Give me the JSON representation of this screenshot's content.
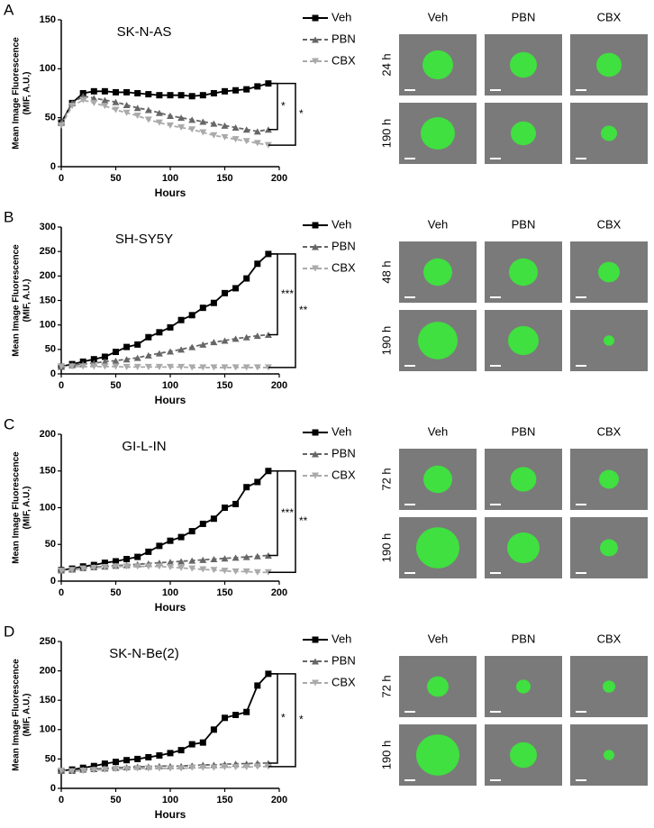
{
  "chart_data": [
    {
      "type": "line",
      "panel": "A",
      "title": "SK-N-AS",
      "xlabel": "Hours",
      "ylabel": [
        "Mean Image Fluorescence",
        "(MIF, A.U.)"
      ],
      "x": [
        0,
        10,
        20,
        30,
        40,
        50,
        60,
        70,
        80,
        90,
        100,
        110,
        120,
        130,
        140,
        150,
        160,
        170,
        180,
        190
      ],
      "xlim": [
        0,
        200
      ],
      "xticks": [
        0,
        50,
        100,
        150,
        200
      ],
      "ylim": [
        0,
        150
      ],
      "yticks": [
        0,
        50,
        100,
        150
      ],
      "series": [
        {
          "name": "Veh",
          "color": "#000000",
          "marker": "square",
          "dash": false,
          "values": [
            45,
            65,
            75,
            77,
            77,
            76,
            76,
            75,
            74,
            73,
            73,
            73,
            72,
            73,
            75,
            77,
            78,
            79,
            82,
            85
          ]
        },
        {
          "name": "PBN",
          "color": "#666666",
          "marker": "triangle-up",
          "dash": true,
          "values": [
            45,
            65,
            72,
            70,
            68,
            66,
            63,
            60,
            58,
            55,
            52,
            50,
            48,
            46,
            44,
            42,
            40,
            38,
            36,
            38
          ]
        },
        {
          "name": "CBX",
          "color": "#aaaaaa",
          "marker": "triangle-down",
          "dash": true,
          "values": [
            42,
            62,
            68,
            65,
            62,
            58,
            55,
            52,
            48,
            45,
            42,
            40,
            38,
            35,
            32,
            30,
            28,
            26,
            24,
            22
          ]
        }
      ],
      "significance": [
        "*",
        "*"
      ],
      "images": {
        "columns": [
          "Veh",
          "PBN",
          "CBX"
        ],
        "rows": [
          "24 h",
          "190 h"
        ]
      }
    },
    {
      "type": "line",
      "panel": "B",
      "title": "SH-SY5Y",
      "xlabel": "Hours",
      "ylabel": [
        "Mean Image Fluorescence",
        "(MIF, A.U.)"
      ],
      "x": [
        0,
        10,
        20,
        30,
        40,
        50,
        60,
        70,
        80,
        90,
        100,
        110,
        120,
        130,
        140,
        150,
        160,
        170,
        180,
        190
      ],
      "xlim": [
        0,
        200
      ],
      "xticks": [
        0,
        50,
        100,
        150,
        200
      ],
      "ylim": [
        0,
        300
      ],
      "yticks": [
        0,
        50,
        100,
        150,
        200,
        250,
        300
      ],
      "series": [
        {
          "name": "Veh",
          "color": "#000000",
          "marker": "square",
          "dash": false,
          "values": [
            15,
            20,
            25,
            30,
            35,
            45,
            55,
            60,
            75,
            85,
            95,
            110,
            120,
            135,
            145,
            165,
            175,
            195,
            225,
            245
          ]
        },
        {
          "name": "PBN",
          "color": "#666666",
          "marker": "triangle-up",
          "dash": true,
          "values": [
            15,
            18,
            20,
            22,
            25,
            27,
            30,
            33,
            38,
            42,
            46,
            50,
            55,
            60,
            65,
            68,
            72,
            75,
            78,
            80
          ]
        },
        {
          "name": "CBX",
          "color": "#aaaaaa",
          "marker": "triangle-down",
          "dash": true,
          "values": [
            15,
            15,
            15,
            15,
            15,
            15,
            14,
            14,
            14,
            14,
            14,
            14,
            13,
            13,
            13,
            13,
            13,
            13,
            13,
            13
          ]
        }
      ],
      "significance": [
        "***",
        "**"
      ],
      "images": {
        "columns": [
          "Veh",
          "PBN",
          "CBX"
        ],
        "rows": [
          "48 h",
          "190 h"
        ]
      }
    },
    {
      "type": "line",
      "panel": "C",
      "title": "GI-L-IN",
      "xlabel": "Hours",
      "ylabel": [
        "Mean Image Fluorescence",
        "(MIF, A.U.)"
      ],
      "x": [
        0,
        10,
        20,
        30,
        40,
        50,
        60,
        70,
        80,
        90,
        100,
        110,
        120,
        130,
        140,
        150,
        160,
        170,
        180,
        190
      ],
      "xlim": [
        0,
        200
      ],
      "xticks": [
        0,
        50,
        100,
        150,
        200
      ],
      "ylim": [
        0,
        200
      ],
      "yticks": [
        0,
        50,
        100,
        150,
        200
      ],
      "series": [
        {
          "name": "Veh",
          "color": "#000000",
          "marker": "square",
          "dash": false,
          "values": [
            15,
            17,
            20,
            22,
            25,
            27,
            30,
            33,
            40,
            48,
            55,
            60,
            68,
            78,
            85,
            100,
            105,
            128,
            135,
            150
          ]
        },
        {
          "name": "PBN",
          "color": "#666666",
          "marker": "triangle-up",
          "dash": true,
          "values": [
            15,
            16,
            18,
            19,
            20,
            21,
            22,
            23,
            24,
            25,
            26,
            27,
            28,
            29,
            30,
            31,
            32,
            33,
            34,
            35
          ]
        },
        {
          "name": "CBX",
          "color": "#aaaaaa",
          "marker": "triangle-down",
          "dash": true,
          "values": [
            14,
            15,
            17,
            18,
            19,
            20,
            20,
            20,
            20,
            20,
            19,
            18,
            17,
            16,
            15,
            14,
            13,
            13,
            12,
            12
          ]
        }
      ],
      "significance": [
        "***",
        "**"
      ],
      "images": {
        "columns": [
          "Veh",
          "PBN",
          "CBX"
        ],
        "rows": [
          "72 h",
          "190 h"
        ]
      }
    },
    {
      "type": "line",
      "panel": "D",
      "title": "SK-N-Be(2)",
      "xlabel": "Hours",
      "ylabel": [
        "Mean Image Fluorescence",
        "(MIF, A.U.)"
      ],
      "x": [
        0,
        10,
        20,
        30,
        40,
        50,
        60,
        70,
        80,
        90,
        100,
        110,
        120,
        130,
        140,
        150,
        160,
        170,
        180,
        190
      ],
      "xlim": [
        0,
        200
      ],
      "xticks": [
        0,
        50,
        100,
        150,
        200
      ],
      "ylim": [
        0,
        250
      ],
      "yticks": [
        0,
        50,
        100,
        150,
        200,
        250
      ],
      "series": [
        {
          "name": "Veh",
          "color": "#000000",
          "marker": "square",
          "dash": false,
          "values": [
            30,
            32,
            35,
            38,
            42,
            45,
            48,
            50,
            53,
            56,
            60,
            65,
            75,
            78,
            100,
            120,
            125,
            130,
            175,
            195
          ]
        },
        {
          "name": "PBN",
          "color": "#666666",
          "marker": "triangle-up",
          "dash": true,
          "values": [
            30,
            30,
            32,
            33,
            34,
            35,
            36,
            37,
            37,
            38,
            38,
            38,
            39,
            40,
            40,
            41,
            42,
            42,
            43,
            43
          ]
        },
        {
          "name": "CBX",
          "color": "#aaaaaa",
          "marker": "triangle-down",
          "dash": true,
          "values": [
            30,
            29,
            30,
            31,
            32,
            33,
            33,
            34,
            34,
            34,
            34,
            34,
            35,
            35,
            35,
            36,
            36,
            36,
            37,
            37
          ]
        }
      ],
      "significance": [
        "*",
        "*"
      ],
      "images": {
        "columns": [
          "Veh",
          "PBN",
          "CBX"
        ],
        "rows": [
          "72 h",
          "190 h"
        ]
      }
    }
  ]
}
